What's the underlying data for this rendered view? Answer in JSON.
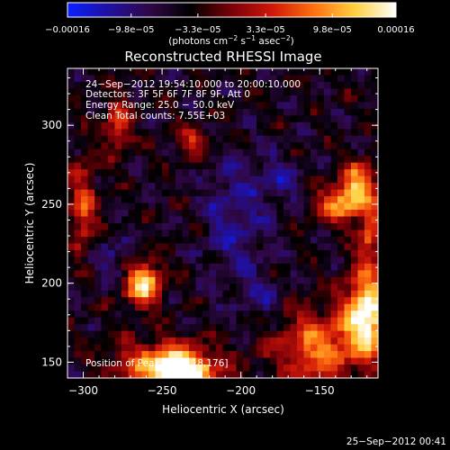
{
  "chart_data": {
    "type": "heatmap",
    "title": "Reconstructed RHESSI Image",
    "xlabel": "Heliocentric X (arcsec)",
    "ylabel": "Heliocentric Y (arcsec)",
    "xlim": [
      -310,
      -113
    ],
    "ylim": [
      140,
      336
    ],
    "x_ticks": [
      -300,
      -250,
      -200,
      -150
    ],
    "y_ticks": [
      150,
      200,
      250,
      300
    ],
    "x_tick_labels": [
      "−300",
      "−250",
      "−200",
      "−150"
    ],
    "y_tick_labels": [
      "150",
      "200",
      "250",
      "300"
    ],
    "colorbar": {
      "range": [
        -0.00016,
        0.00016
      ],
      "tick_values": [
        -0.00016,
        -9.8e-05,
        -3.3e-05,
        3.3e-05,
        9.8e-05,
        0.00016
      ],
      "tick_labels": [
        "−0.00016",
        "−9.8e−05",
        "−3.3e−05",
        "3.3e−05",
        "9.8e−05",
        "0.00016"
      ],
      "units_main": "(photons cm",
      "units_sup1": "−2",
      "units_mid": " s",
      "units_sup2": "−1",
      "units_end": " asec",
      "units_sup3": "−2",
      "units_close": ")",
      "colors": [
        "#0a20ff",
        "#2010a0",
        "#300848",
        "#000000",
        "#7a0008",
        "#d01808",
        "#ff7010",
        "#ffd040",
        "#ffffff"
      ]
    },
    "annotations": [
      "24−Sep−2012 19:54:10.000 to 20:00:10.000",
      "Detectors: 3F 5F 6F 7F 8F 9F, Att 0",
      "Energy Range: 25.0 − 50.0 keV",
      "Clean    Total counts: 7.55E+03"
    ],
    "peak_label": "Position of Peak = [−118,176]",
    "footer_date": "25−Sep−2012 00:41",
    "grid": false,
    "background_level": -5e-05,
    "hotspots": [
      {
        "x": -238,
        "y": 143,
        "amp": 0.00021,
        "sx": 14,
        "sy": 8
      },
      {
        "x": -250,
        "y": 150,
        "amp": 0.00012,
        "sx": 22,
        "sy": 10
      },
      {
        "x": -262,
        "y": 200,
        "amp": 0.00019,
        "sx": 8,
        "sy": 10
      },
      {
        "x": -150,
        "y": 160,
        "amp": 0.00013,
        "sx": 20,
        "sy": 16
      },
      {
        "x": -120,
        "y": 182,
        "amp": 0.00022,
        "sx": 9,
        "sy": 18
      },
      {
        "x": -135,
        "y": 250,
        "amp": 0.00015,
        "sx": 12,
        "sy": 8
      },
      {
        "x": -125,
        "y": 265,
        "amp": 0.00014,
        "sx": 8,
        "sy": 8
      },
      {
        "x": -118,
        "y": 230,
        "amp": 0.00011,
        "sx": 5,
        "sy": 12
      },
      {
        "x": -300,
        "y": 248,
        "amp": 0.00011,
        "sx": 6,
        "sy": 20
      },
      {
        "x": -278,
        "y": 300,
        "amp": 0.0001,
        "sx": 6,
        "sy": 12
      },
      {
        "x": -230,
        "y": 290,
        "amp": 9e-05,
        "sx": 8,
        "sy": 6
      }
    ],
    "coldspots": [
      {
        "x": -205,
        "y": 240,
        "amp": -6e-05,
        "sx": 14,
        "sy": 30
      },
      {
        "x": -175,
        "y": 265,
        "amp": -5e-05,
        "sx": 10,
        "sy": 12
      },
      {
        "x": -280,
        "y": 215,
        "amp": -5e-05,
        "sx": 10,
        "sy": 10
      },
      {
        "x": -185,
        "y": 190,
        "amp": -4e-05,
        "sx": 10,
        "sy": 12
      }
    ]
  }
}
